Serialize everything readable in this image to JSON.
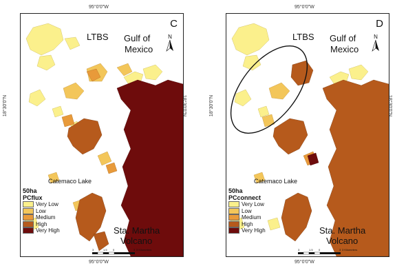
{
  "coordinates": {
    "top_left": "95°0'0\"W",
    "top_right": "95°0'0\"W",
    "bottom_left": "95°0'0\"W",
    "bottom_right": "95°0'0\"W",
    "side_left_outer": "18°30'0\"N",
    "side_left_inner": "18°30'0\"N",
    "side_right_inner": "18°30'0\"N",
    "side_right_outer": "18°30'0\"N"
  },
  "scalebar": {
    "ticks": [
      "3",
      "1.5",
      "0",
      "3"
    ],
    "unit": "3 Kilometers"
  },
  "north_label": "N",
  "panel_c": {
    "letter": "C",
    "places": {
      "ltbs": "LTBS",
      "gulf_line1": "Gulf of",
      "gulf_line2": "Mexico",
      "lake": "Catemaco Lake",
      "volcano_line1": "Sta. Martha",
      "volcano_line2": "Volcano"
    },
    "legend": {
      "title_line1": "50ha",
      "title_line2": "PCflux",
      "items": [
        "Very Low",
        "Low",
        "Medium",
        "High",
        "Very High"
      ]
    }
  },
  "panel_d": {
    "letter": "D",
    "places": {
      "ltbs": "LTBS",
      "gulf_line1": "Gulf of",
      "gulf_line2": "Mexico",
      "lake": "Catemaco Lake",
      "volcano_line1": "Sta. Martha",
      "volcano_line2": "Volcano"
    },
    "legend": {
      "title_line1": "50ha",
      "title_line2": "PCconnect",
      "items": [
        "Very Low",
        "Low",
        "Medium",
        "High",
        "Very High"
      ]
    }
  },
  "colors": {
    "very_low": "#fbf08c",
    "low": "#f3c65a",
    "medium": "#e89a3a",
    "high": "#b65a1c",
    "very_high": "#6e0c0c"
  }
}
